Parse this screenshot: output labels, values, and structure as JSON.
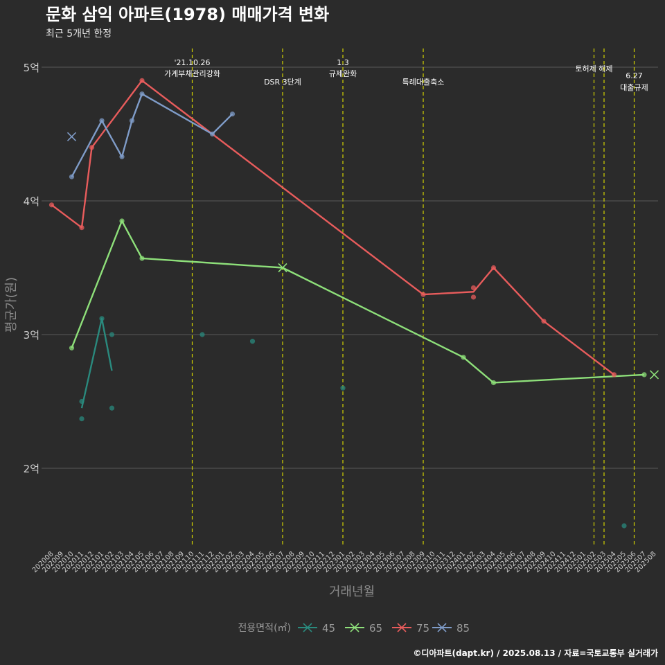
{
  "header": {
    "title": "문화 삼익 아파트(1978) 매매가격 변화",
    "subtitle": "최근 5개년 한정"
  },
  "caption": "©디아파트(dapt.kr) / 2025.08.13 / 자료=국토교통부 실거래가",
  "colors": {
    "background": "#2b2b2b",
    "grid": "#5a5a5a",
    "policy_line": "#d4d400",
    "s45": "#2a8a7e",
    "s65": "#8ee07a",
    "s75": "#e85c5c",
    "s85": "#7f9cc8"
  },
  "chart_data": {
    "type": "line",
    "title": "문화 삼익 아파트(1978) 매매가격 변화",
    "subtitle": "최근 5개년 한정",
    "xlabel": "거래년월",
    "ylabel": "평균가(원)",
    "ylim": [
      1.4,
      5.1
    ],
    "y_ticks": [
      {
        "value": 2,
        "label": "2억"
      },
      {
        "value": 3,
        "label": "3억"
      },
      {
        "value": 4,
        "label": "4억"
      },
      {
        "value": 5,
        "label": "5억"
      }
    ],
    "x_categories": [
      "202008",
      "202009",
      "202010",
      "202011",
      "202012",
      "202101",
      "202102",
      "202103",
      "202104",
      "202105",
      "202106",
      "202107",
      "202108",
      "202109",
      "202110",
      "202111",
      "202112",
      "202201",
      "202202",
      "202203",
      "202204",
      "202205",
      "202206",
      "202207",
      "202208",
      "202209",
      "202210",
      "202211",
      "202212",
      "202301",
      "202302",
      "202303",
      "202304",
      "202305",
      "202306",
      "202307",
      "202308",
      "202309",
      "202310",
      "202311",
      "202312",
      "202401",
      "202402",
      "202403",
      "202404",
      "202405",
      "202406",
      "202407",
      "202408",
      "202409",
      "202410",
      "202411",
      "202412",
      "202501",
      "202502",
      "202503",
      "202504",
      "202505",
      "202506",
      "202507",
      "202508"
    ],
    "legend": {
      "title": "전용면적(㎡)",
      "position": "bottom",
      "entries": [
        "45",
        "65",
        "75",
        "85"
      ]
    },
    "grid": true,
    "annotations": [
      {
        "x": "202110",
        "lines": [
          "'21.10.26",
          "가계부채관리강화"
        ]
      },
      {
        "x": "202207",
        "lines": [
          "DSR 3단계"
        ]
      },
      {
        "x": "202301",
        "lines": [
          "1.3",
          "규제완화"
        ]
      },
      {
        "x": "202309",
        "lines": [
          "특례대출축소"
        ]
      },
      {
        "x": "202502",
        "lines": [
          "토허제 해제"
        ]
      },
      {
        "x": "202503",
        "lines": []
      },
      {
        "x": "202506",
        "lines": [
          "6.27",
          "대출규제"
        ]
      }
    ],
    "series": [
      {
        "name": "45",
        "line": [
          [
            "202011",
            2.45
          ],
          [
            "202101",
            3.12
          ],
          [
            "202102",
            2.73
          ]
        ],
        "points": [
          [
            "202011",
            2.5
          ],
          [
            "202011",
            2.37
          ],
          [
            "202101",
            3.12
          ],
          [
            "202102",
            3.0
          ],
          [
            "202102",
            2.45
          ],
          [
            "202111",
            3.0
          ],
          [
            "202204",
            2.95
          ],
          [
            "202301",
            2.6
          ],
          [
            "202505",
            1.57
          ]
        ],
        "crosses": []
      },
      {
        "name": "65",
        "line": [
          [
            "202010",
            2.9
          ],
          [
            "202103",
            3.85
          ],
          [
            "202105",
            3.57
          ],
          [
            "202207",
            3.5
          ],
          [
            "202401",
            2.83
          ],
          [
            "202404",
            2.64
          ],
          [
            "202507",
            2.7
          ]
        ],
        "points": [
          [
            "202010",
            2.9
          ],
          [
            "202103",
            3.85
          ],
          [
            "202105",
            3.57
          ],
          [
            "202401",
            2.83
          ],
          [
            "202404",
            2.64
          ],
          [
            "202507",
            2.7
          ]
        ],
        "crosses": [
          [
            "202207",
            3.5
          ],
          [
            "202508",
            2.7
          ]
        ]
      },
      {
        "name": "75",
        "line": [
          [
            "202008",
            3.97
          ],
          [
            "202011",
            3.8
          ],
          [
            "202012",
            4.4
          ],
          [
            "202105",
            4.9
          ],
          [
            "202309",
            3.3
          ],
          [
            "202402",
            3.32
          ],
          [
            "202404",
            3.5
          ],
          [
            "202409",
            3.1
          ],
          [
            "202504",
            2.7
          ]
        ],
        "points": [
          [
            "202008",
            3.97
          ],
          [
            "202011",
            3.8
          ],
          [
            "202012",
            4.4
          ],
          [
            "202105",
            4.9
          ],
          [
            "202309",
            3.3
          ],
          [
            "202402",
            3.35
          ],
          [
            "202402",
            3.28
          ],
          [
            "202404",
            3.5
          ],
          [
            "202409",
            3.1
          ],
          [
            "202504",
            2.7
          ]
        ],
        "crosses": []
      },
      {
        "name": "85",
        "line": [
          [
            "202010",
            4.18
          ],
          [
            "202101",
            4.6
          ],
          [
            "202103",
            4.33
          ],
          [
            "202104",
            4.6
          ],
          [
            "202105",
            4.8
          ],
          [
            "202112",
            4.5
          ],
          [
            "202202",
            4.65
          ]
        ],
        "points": [
          [
            "202010",
            4.18
          ],
          [
            "202101",
            4.6
          ],
          [
            "202103",
            4.33
          ],
          [
            "202104",
            4.6
          ],
          [
            "202105",
            4.8
          ],
          [
            "202112",
            4.5
          ],
          [
            "202202",
            4.65
          ]
        ],
        "crosses": [
          [
            "202010",
            4.48
          ]
        ]
      }
    ]
  }
}
